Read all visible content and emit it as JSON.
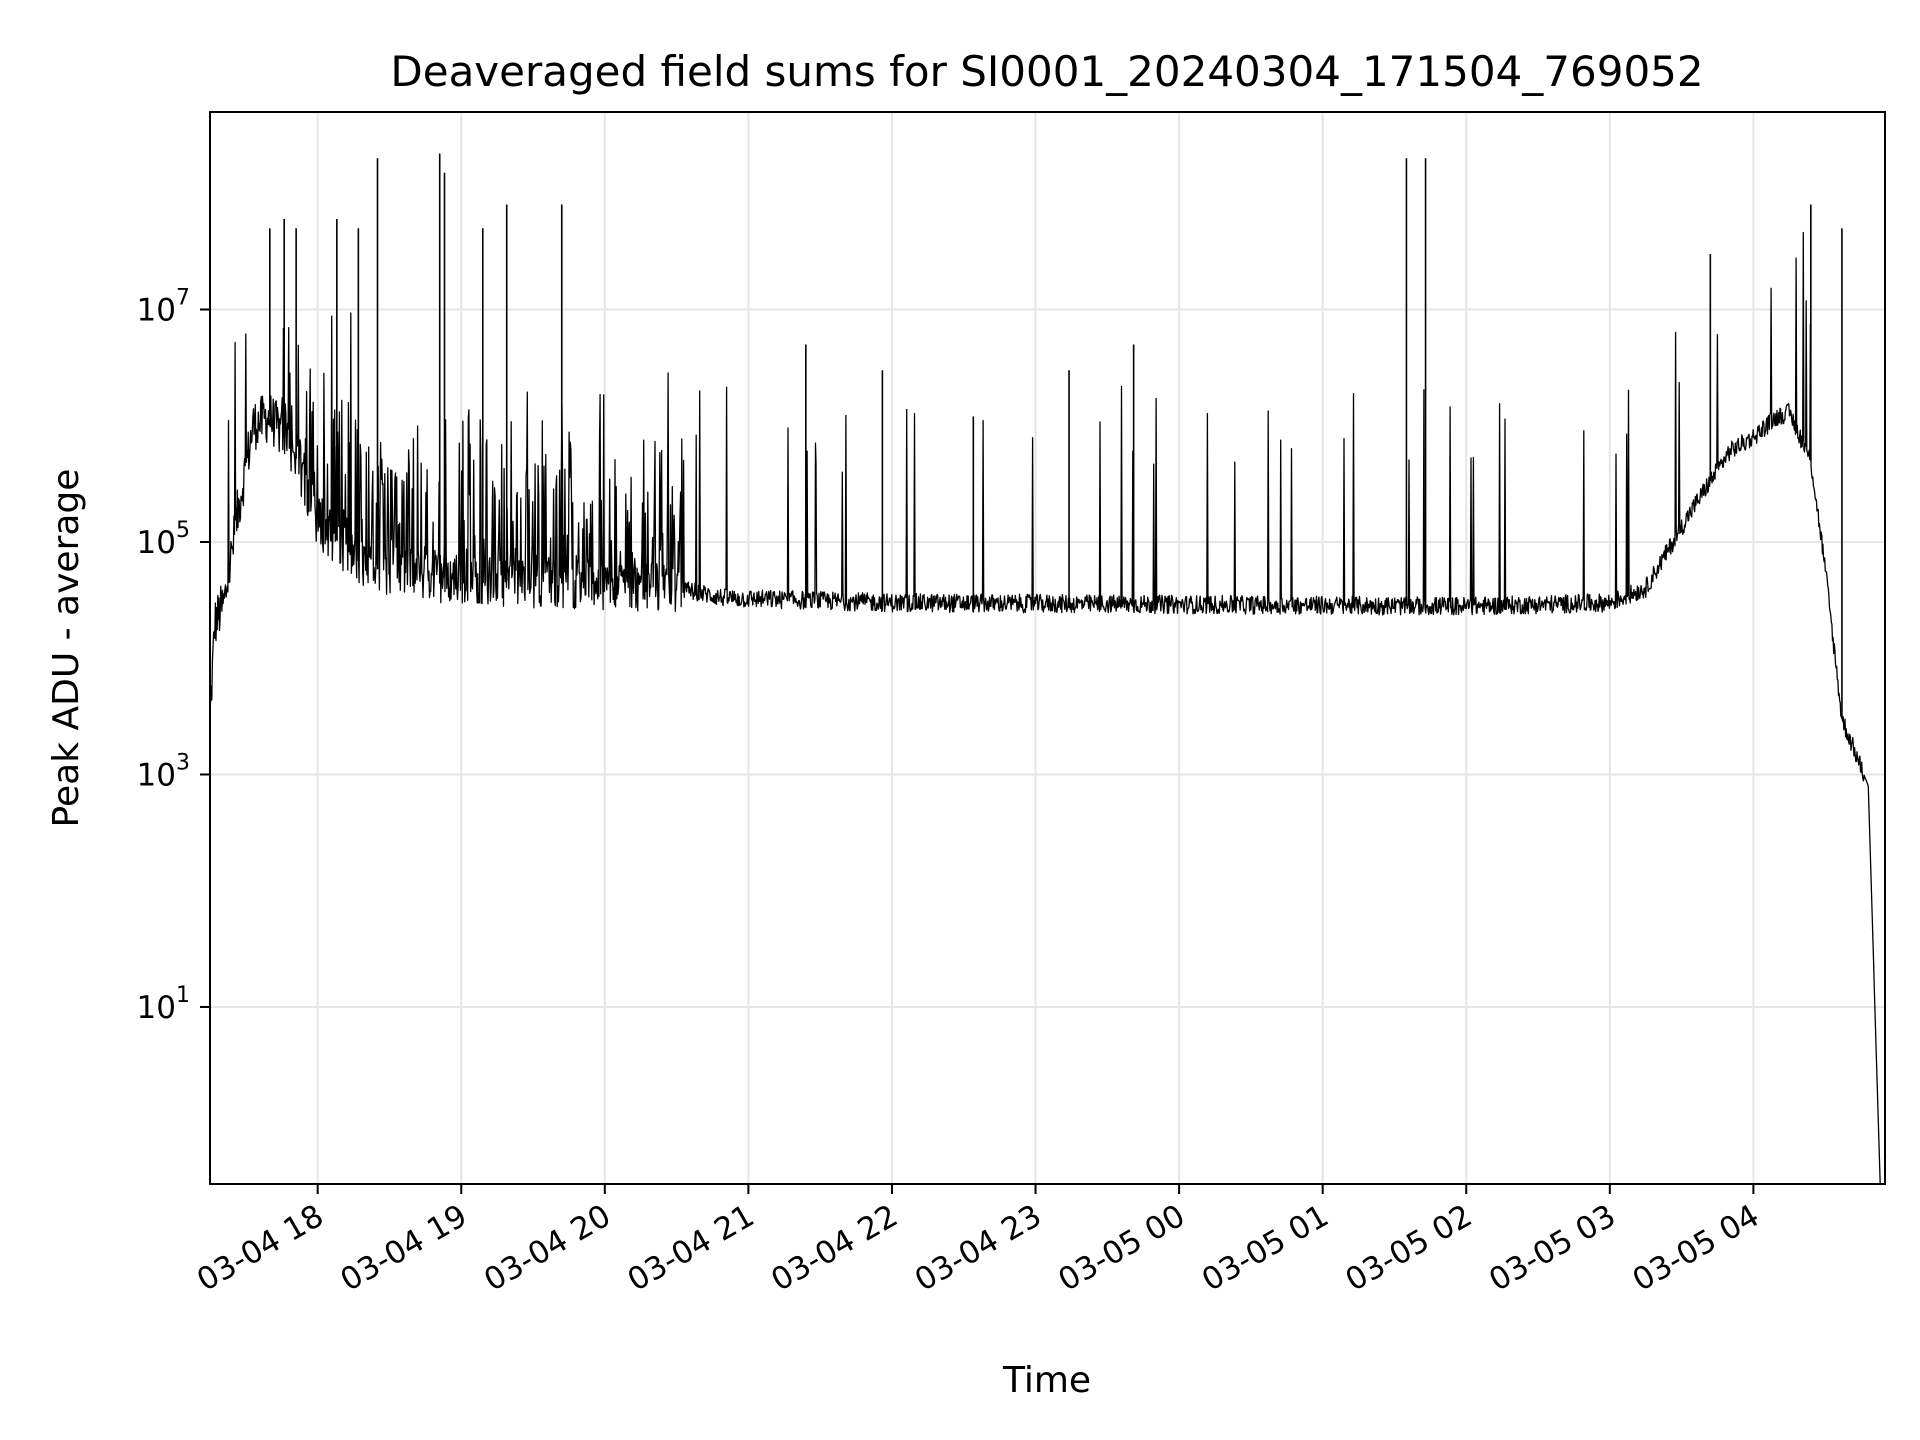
{
  "chart_data": {
    "type": "line",
    "title": "Deaveraged field sums for SI0001_20240304_171504_769052",
    "xlabel": "Time",
    "ylabel": "Peak ADU - average",
    "yscale": "log",
    "grid": true,
    "line_color": "#000000",
    "x_range": [
      "2024-03-04 17:15",
      "2024-03-05 04:55"
    ],
    "ylim": [
      0.3,
      500000000
    ],
    "x_ticks": [
      {
        "t": "2024-03-04 18:00",
        "label": "03-04 18"
      },
      {
        "t": "2024-03-04 19:00",
        "label": "03-04 19"
      },
      {
        "t": "2024-03-04 20:00",
        "label": "03-04 20"
      },
      {
        "t": "2024-03-04 21:00",
        "label": "03-04 21"
      },
      {
        "t": "2024-03-04 22:00",
        "label": "03-04 22"
      },
      {
        "t": "2024-03-04 23:00",
        "label": "03-04 23"
      },
      {
        "t": "2024-03-05 00:00",
        "label": "03-05 00"
      },
      {
        "t": "2024-03-05 01:00",
        "label": "03-05 01"
      },
      {
        "t": "2024-03-05 02:00",
        "label": "03-05 02"
      },
      {
        "t": "2024-03-05 03:00",
        "label": "03-05 03"
      },
      {
        "t": "2024-03-05 04:00",
        "label": "03-05 04"
      }
    ],
    "y_ticks": [
      {
        "value": 10,
        "base": "10",
        "exp": "1"
      },
      {
        "value": 1000,
        "base": "10",
        "exp": "3"
      },
      {
        "value": 100000,
        "base": "10",
        "exp": "5"
      },
      {
        "value": 10000000,
        "base": "10",
        "exp": "7"
      }
    ],
    "baseline": [
      {
        "t": "2024-03-04 17:15",
        "y": 3000
      },
      {
        "t": "2024-03-04 17:17",
        "y": 20000
      },
      {
        "t": "2024-03-04 17:21",
        "y": 30000
      },
      {
        "t": "2024-03-04 17:27",
        "y": 200000
      },
      {
        "t": "2024-03-04 17:33",
        "y": 1000000
      },
      {
        "t": "2024-03-04 17:40",
        "y": 1200000
      },
      {
        "t": "2024-03-04 17:50",
        "y": 600000
      },
      {
        "t": "2024-03-04 18:00",
        "y": 150000
      },
      {
        "t": "2024-03-04 18:20",
        "y": 60000
      },
      {
        "t": "2024-03-04 18:50",
        "y": 50000
      },
      {
        "t": "2024-03-04 19:30",
        "y": 45000
      },
      {
        "t": "2024-03-04 20:30",
        "y": 40000
      },
      {
        "t": "2024-03-04 20:50",
        "y": 33000
      },
      {
        "t": "2024-03-04 22:00",
        "y": 30000
      },
      {
        "t": "2024-03-05 00:00",
        "y": 29000
      },
      {
        "t": "2024-03-05 02:00",
        "y": 28000
      },
      {
        "t": "2024-03-05 03:00",
        "y": 30000
      },
      {
        "t": "2024-03-05 03:15",
        "y": 40000
      },
      {
        "t": "2024-03-05 03:35",
        "y": 200000
      },
      {
        "t": "2024-03-05 03:50",
        "y": 600000
      },
      {
        "t": "2024-03-05 04:00",
        "y": 800000
      },
      {
        "t": "2024-03-05 04:10",
        "y": 1200000
      },
      {
        "t": "2024-03-05 04:15",
        "y": 1300000
      },
      {
        "t": "2024-03-05 04:24",
        "y": 500000
      },
      {
        "t": "2024-03-05 04:30",
        "y": 60000
      },
      {
        "t": "2024-03-05 04:37",
        "y": 3000
      },
      {
        "t": "2024-03-05 04:48",
        "y": 800
      },
      {
        "t": "2024-03-05 04:53",
        "y": 0.3
      }
    ],
    "spikes": [
      {
        "t": "2024-03-04 17:40",
        "y": 50000000
      },
      {
        "t": "2024-03-04 17:46",
        "y": 60000000
      },
      {
        "t": "2024-03-04 17:51",
        "y": 50000000
      },
      {
        "t": "2024-03-04 18:08",
        "y": 60000000
      },
      {
        "t": "2024-03-04 18:17",
        "y": 50000000
      },
      {
        "t": "2024-03-04 18:25",
        "y": 200000000
      },
      {
        "t": "2024-03-04 18:51",
        "y": 220000000
      },
      {
        "t": "2024-03-04 18:53",
        "y": 150000000
      },
      {
        "t": "2024-03-04 19:09",
        "y": 50000000
      },
      {
        "t": "2024-03-04 19:19",
        "y": 80000000
      },
      {
        "t": "2024-03-04 19:42",
        "y": 80000000
      },
      {
        "t": "2024-03-04 21:24",
        "y": 5000000
      },
      {
        "t": "2024-03-04 21:56",
        "y": 3000000
      },
      {
        "t": "2024-03-04 22:34",
        "y": 1200000
      },
      {
        "t": "2024-03-04 23:14",
        "y": 3000000
      },
      {
        "t": "2024-03-04 23:41",
        "y": 5000000
      },
      {
        "t": "2024-03-05 01:35",
        "y": 200000000
      },
      {
        "t": "2024-03-05 01:43",
        "y": 200000000
      },
      {
        "t": "2024-03-05 03:42",
        "y": 30000000
      },
      {
        "t": "2024-03-05 04:24",
        "y": 80000000
      },
      {
        "t": "2024-03-05 04:37",
        "y": 50000000
      }
    ]
  }
}
